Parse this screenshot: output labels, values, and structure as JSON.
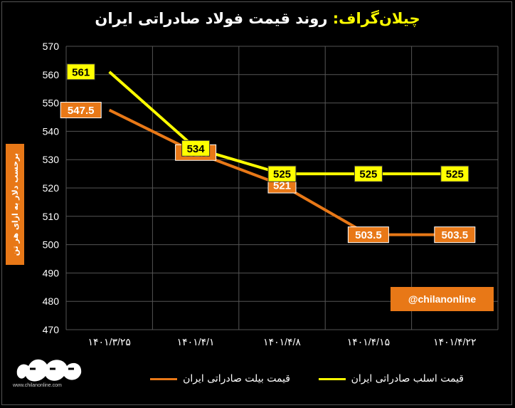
{
  "title": {
    "brand": "چیلان‌گراف:",
    "main": "روند قیمت فولاد صادراتی ایران"
  },
  "y_axis_label": "برحسب دلار به ازای هر تن",
  "handle": "@chilanonline",
  "logo": {
    "brand_text": "چیلان",
    "site": "www.chilanonline.com"
  },
  "colors": {
    "slab": "#ffff00",
    "billet": "#e87817",
    "background": "#000000"
  },
  "chart_data": {
    "type": "line",
    "categories": [
      "۱۴۰۱/۳/۲۵",
      "۱۴۰۱/۴/۱",
      "۱۴۰۱/۴/۸",
      "۱۴۰۱/۴/۱۵",
      "۱۴۰۱/۴/۲۲"
    ],
    "series": [
      {
        "name": "قیمت اسلب صادراتی ایران",
        "color": "#ffff00",
        "values": [
          561,
          534,
          525,
          525,
          525
        ],
        "labels": [
          "561",
          "534",
          "525",
          "525",
          "525"
        ]
      },
      {
        "name": "قیمت بیلت صادراتی ایران",
        "color": "#e87817",
        "values": [
          547.5,
          532.5,
          521,
          503.5,
          503.5
        ],
        "labels": [
          "547.5",
          "532.5",
          "521",
          "503.5",
          "503.5"
        ]
      }
    ],
    "ylim": [
      470,
      570
    ],
    "yticks": [
      470,
      480,
      490,
      500,
      510,
      520,
      530,
      540,
      550,
      560,
      570
    ],
    "grid": true,
    "legend": "bottom"
  }
}
